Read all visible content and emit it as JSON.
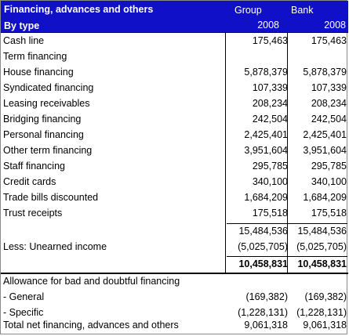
{
  "header": {
    "title": "Financing, advances and others",
    "subtitle": "By type",
    "group_label": "Group",
    "bank_label": "Bank",
    "group_year": "2008",
    "bank_year": "2008"
  },
  "rows": [
    {
      "label": "Cash line",
      "group": "175,463",
      "bank": "175,463"
    },
    {
      "label": "Term financing",
      "group": "",
      "bank": ""
    },
    {
      "label": "House financing",
      "group": "5,878,379",
      "bank": "5,878,379"
    },
    {
      "label": "Syndicated financing",
      "group": "107,339",
      "bank": "107,339"
    },
    {
      "label": "Leasing receivables",
      "group": "208,234",
      "bank": "208,234"
    },
    {
      "label": "Bridging financing",
      "group": "242,504",
      "bank": "242,504"
    },
    {
      "label": "Personal financing",
      "group": "2,425,401",
      "bank": "2,425,401"
    },
    {
      "label": "Other term financing",
      "group": "3,951,604",
      "bank": "3,951,604"
    },
    {
      "label": "Staff financing",
      "group": "295,785",
      "bank": "295,785"
    },
    {
      "label": "Credit cards",
      "group": "340,100",
      "bank": "340,100"
    },
    {
      "label": "Trade bills discounted",
      "group": "1,684,209",
      "bank": "1,684,209"
    },
    {
      "label": "Trust receipts",
      "group": "175,518",
      "bank": "175,518"
    },
    {
      "label": "",
      "group": "15,484,536",
      "bank": "15,484,536"
    },
    {
      "label": "Less: Unearned income",
      "group": "(5,025,705)",
      "bank": "(5,025,705)"
    },
    {
      "label": "",
      "group": "10,458,831",
      "bank": "10,458,831"
    }
  ],
  "allowance": {
    "heading": "Allowance for bad and doubtful financing",
    "rows": [
      {
        "label": "- General",
        "group": "(169,382)",
        "bank": "(169,382)"
      },
      {
        "label": "- Specific",
        "group": "(1,228,131)",
        "bank": "(1,228,131)"
      },
      {
        "label": "Total net financing, advances and others",
        "group": "9,061,318",
        "bank": "9,061,318"
      }
    ]
  }
}
